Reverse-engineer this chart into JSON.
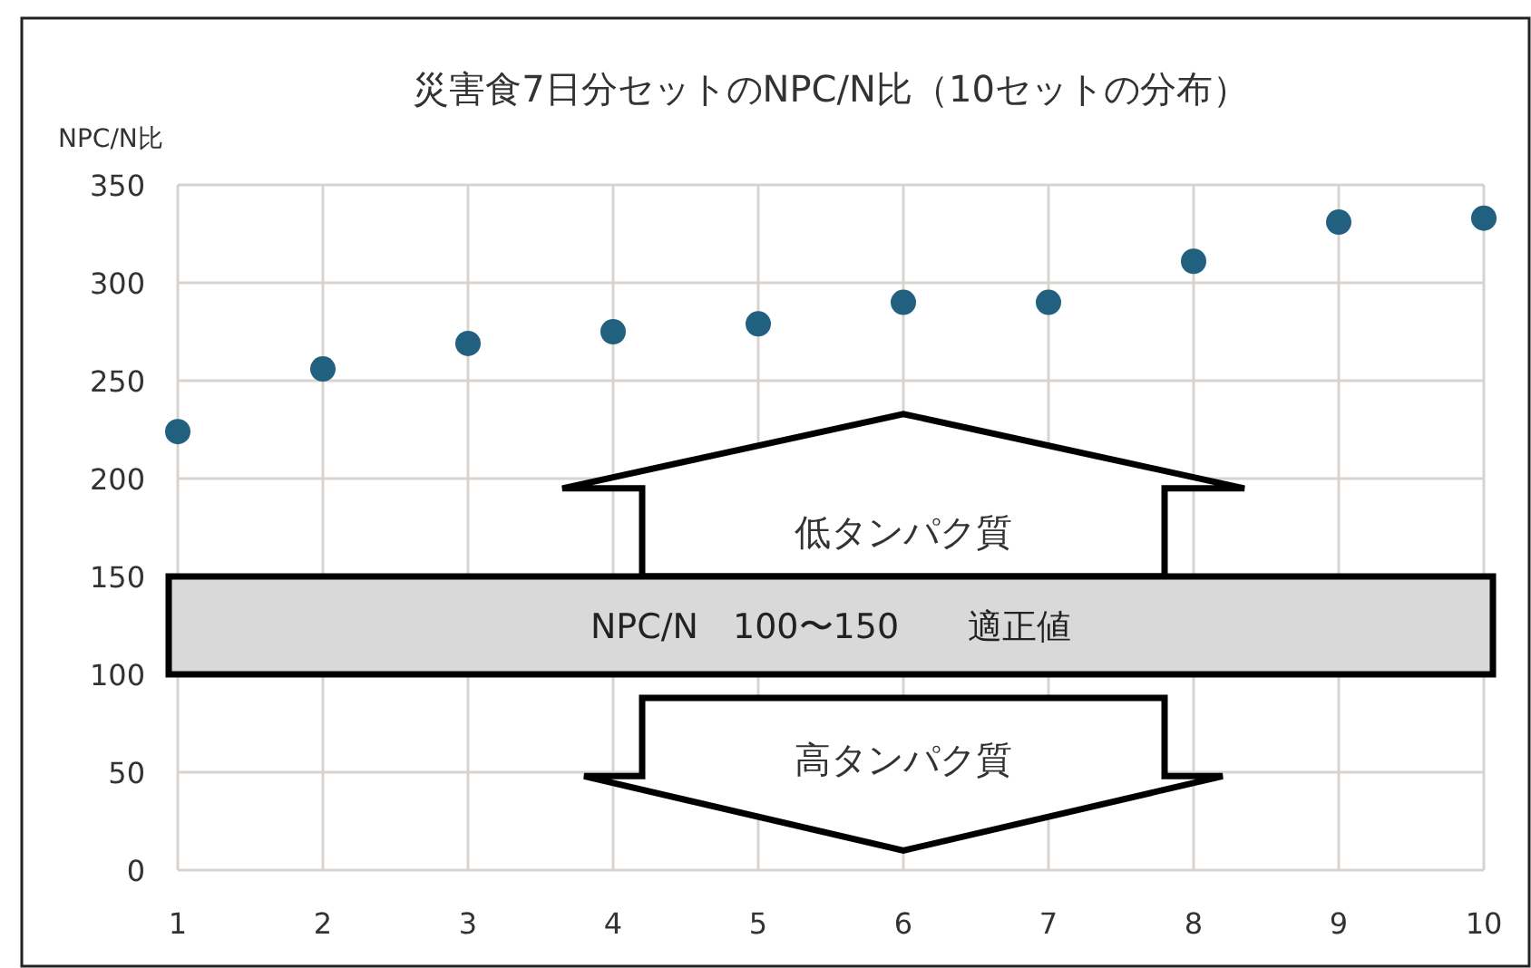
{
  "chart_data": {
    "type": "scatter",
    "title": "災害食7日分セットのNPC/N比（10セットの分布）",
    "ylabel": "NPC/N比",
    "x": [
      1,
      2,
      3,
      4,
      5,
      6,
      7,
      8,
      9,
      10
    ],
    "series": [
      {
        "color": "#21607f",
        "values": [
          224,
          256,
          269,
          275,
          279,
          290,
          290,
          311,
          331,
          333
        ]
      }
    ],
    "xlim": [
      1,
      10
    ],
    "xticks": [
      1,
      2,
      3,
      4,
      5,
      6,
      7,
      8,
      9,
      10
    ],
    "ylim": [
      0,
      350
    ],
    "yticks": [
      0,
      50,
      100,
      150,
      200,
      250,
      300,
      350
    ],
    "grid": true,
    "marker": "circle",
    "bands": [
      {
        "axis": "y",
        "from": 100,
        "to": 150,
        "label": "NPC/N　100〜150　　適正値",
        "color": "#d9d9d9"
      }
    ],
    "annotations": [
      "低タンパク質",
      "高タンパク質"
    ]
  }
}
